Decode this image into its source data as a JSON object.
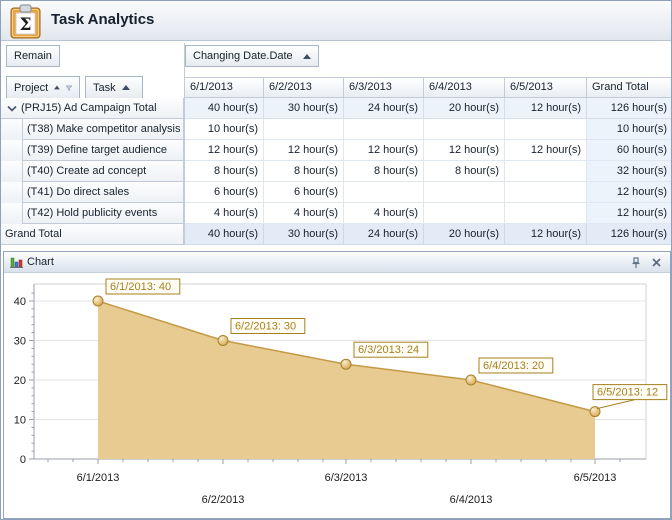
{
  "header": {
    "title": "Task Analytics",
    "icon": "clipboard-sigma-icon"
  },
  "pivot": {
    "data_field": "Remain",
    "column_field": "Changing Date.Date",
    "row_fields": [
      "Project",
      "Task"
    ],
    "columns": [
      "6/1/2013",
      "6/2/2013",
      "6/3/2013",
      "6/4/2013",
      "6/5/2013",
      "Grand Total"
    ],
    "rows": [
      {
        "label": "(PRJ15) Ad Campaign Total",
        "type": "group",
        "expanded": true,
        "values": [
          "40 hour(s)",
          "30 hour(s)",
          "24 hour(s)",
          "20 hour(s)",
          "12 hour(s)",
          "126 hour(s)"
        ]
      },
      {
        "label": "(T38) Make competitor analysis",
        "type": "task",
        "values": [
          "10 hour(s)",
          "",
          "",
          "",
          "",
          "10 hour(s)"
        ]
      },
      {
        "label": "(T39) Define target audience",
        "type": "task",
        "values": [
          "12 hour(s)",
          "12 hour(s)",
          "12 hour(s)",
          "12 hour(s)",
          "12 hour(s)",
          "60 hour(s)"
        ]
      },
      {
        "label": "(T40) Create ad concept",
        "type": "task",
        "values": [
          "8 hour(s)",
          "8 hour(s)",
          "8 hour(s)",
          "8 hour(s)",
          "",
          "32 hour(s)"
        ]
      },
      {
        "label": "(T41) Do direct sales",
        "type": "task",
        "values": [
          "6 hour(s)",
          "6 hour(s)",
          "",
          "",
          "",
          "12 hour(s)"
        ]
      },
      {
        "label": "(T42) Hold publicity events",
        "type": "task",
        "values": [
          "4 hour(s)",
          "4 hour(s)",
          "4 hour(s)",
          "",
          "",
          "12 hour(s)"
        ]
      },
      {
        "label": "Grand Total",
        "type": "grand",
        "values": [
          "40 hour(s)",
          "30 hour(s)",
          "24 hour(s)",
          "20 hour(s)",
          "12 hour(s)",
          "126 hour(s)"
        ]
      }
    ]
  },
  "chart_panel": {
    "title": "Chart",
    "icons": [
      "bar-chart-icon",
      "pin-icon",
      "close-icon"
    ]
  },
  "chart_data": {
    "type": "area",
    "title": "",
    "x": [
      "6/1/2013",
      "6/2/2013",
      "6/3/2013",
      "6/4/2013",
      "6/5/2013"
    ],
    "values": [
      40,
      30,
      24,
      20,
      12
    ],
    "point_labels": [
      "6/1/2013: 40",
      "6/2/2013: 30",
      "6/3/2013: 24",
      "6/4/2013: 20",
      "6/5/2013: 12"
    ],
    "xlabel": "",
    "ylabel": "",
    "yticks": [
      0,
      10,
      20,
      30,
      40
    ],
    "ylim": [
      0,
      44
    ],
    "grid": true,
    "legend": "none"
  },
  "colors": {
    "area_fill": "#e7cb90",
    "area_line": "#c49a48",
    "marker_stroke": "#a5802f",
    "point_label": "#a6801f",
    "grid_line": "#e3e3e3",
    "axis_line": "#9aa1a8",
    "group_row_bg": "#edf3fa",
    "grand_row_bg": "#e2ebf6",
    "accent_border": "#94a4bf"
  }
}
